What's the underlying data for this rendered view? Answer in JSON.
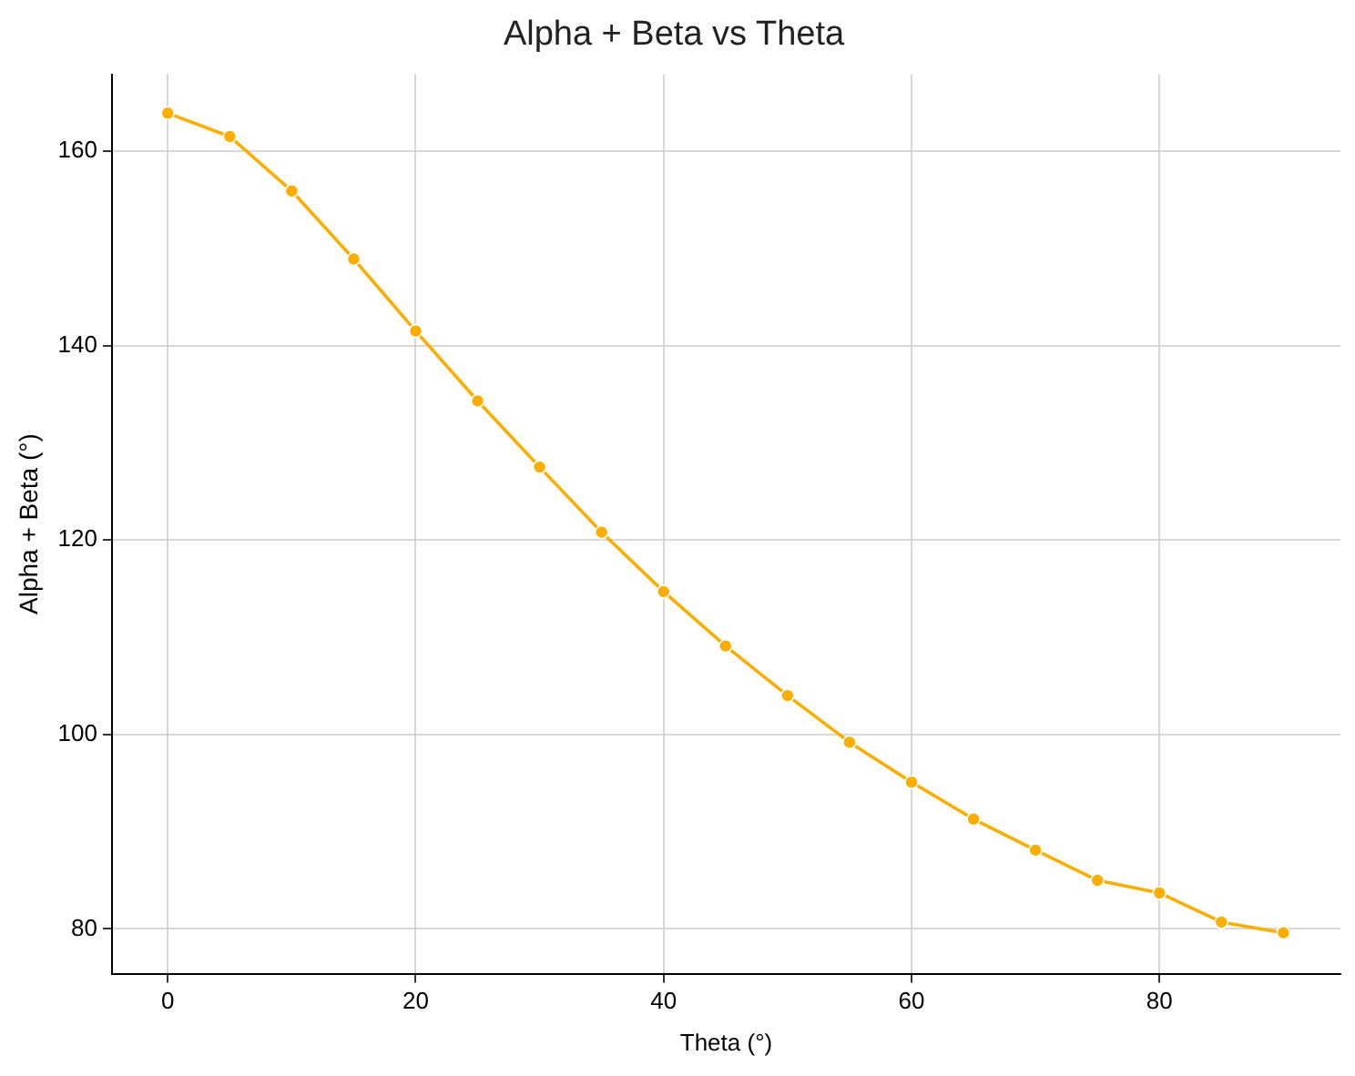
{
  "chart_data": {
    "type": "line",
    "title": "Alpha + Beta vs Theta",
    "xlabel": "Theta (°)",
    "ylabel": "Alpha + Beta (°)",
    "x": [
      0,
      5,
      10,
      15,
      20,
      25,
      30,
      35,
      40,
      45,
      50,
      55,
      60,
      65,
      70,
      75,
      80,
      85,
      90
    ],
    "series": [
      {
        "color": "#fbae00",
        "values": [
          163.9,
          161.5,
          155.9,
          148.9,
          141.5,
          134.3,
          127.5,
          120.8,
          114.7,
          109.1,
          104.0,
          99.2,
          95.1,
          91.3,
          88.1,
          85.0,
          83.7,
          80.7,
          79.6
        ]
      }
    ],
    "xlim": [
      -4.5,
      94.6
    ],
    "ylim": [
      75.4,
      167.9
    ],
    "xticks": [
      0,
      20,
      40,
      60,
      80
    ],
    "yticks": [
      80,
      100,
      120,
      140,
      160
    ],
    "grid": true,
    "legend": false,
    "marker": "circle",
    "line_style": "solid"
  }
}
